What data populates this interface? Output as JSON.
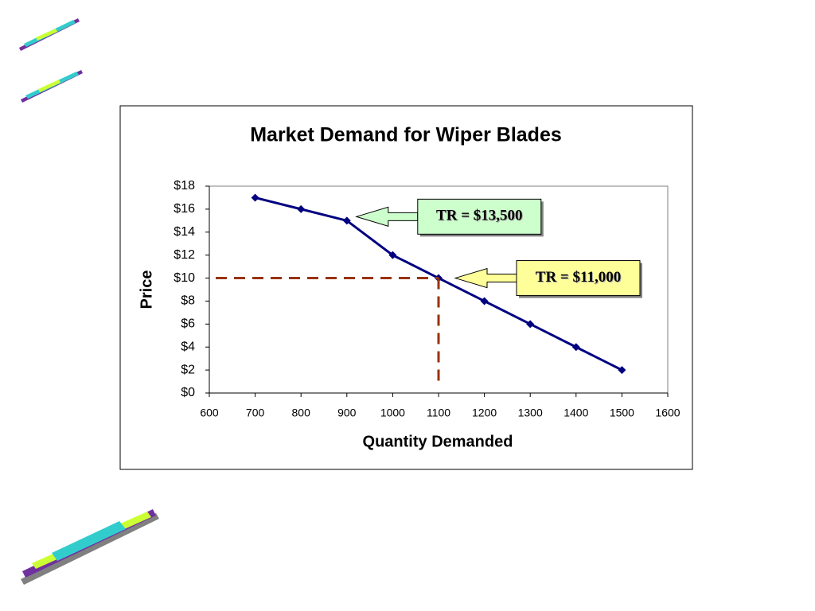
{
  "chart_data": {
    "type": "line",
    "title": "Market Demand for Wiper Blades",
    "x_label": "Quantity Demanded",
    "y_label": "Price",
    "x": [
      700,
      800,
      900,
      1000,
      1100,
      1200,
      1300,
      1400,
      1500
    ],
    "series": [
      {
        "name": "Demand",
        "color": "#000080",
        "values": [
          17,
          16,
          15,
          12,
          10,
          8,
          6,
          4,
          2
        ]
      }
    ],
    "xlim": [
      600,
      1600
    ],
    "xticks": [
      600,
      700,
      800,
      900,
      1000,
      1100,
      1200,
      1300,
      1400,
      1500,
      1600
    ],
    "ylim": [
      0,
      18
    ],
    "yticks": [
      {
        "value": 0,
        "label": "$0"
      },
      {
        "value": 2,
        "label": "$2"
      },
      {
        "value": 4,
        "label": "$4"
      },
      {
        "value": 6,
        "label": "$6"
      },
      {
        "value": 8,
        "label": "$8"
      },
      {
        "value": 10,
        "label": "$10"
      },
      {
        "value": 12,
        "label": "$12"
      },
      {
        "value": 14,
        "label": "$14"
      },
      {
        "value": 16,
        "label": "$16"
      },
      {
        "value": 18,
        "label": "$18"
      }
    ],
    "reference_color": "#993300",
    "annotations": [
      {
        "text": "TR = $13,500",
        "color": "#ccffcc"
      },
      {
        "text": "TR = $11,000",
        "color": "#ffff99"
      }
    ]
  }
}
